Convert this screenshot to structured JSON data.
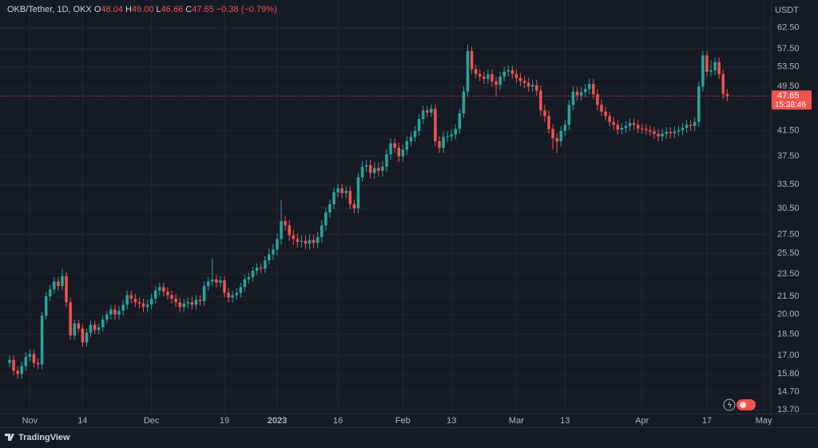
{
  "chart_data": {
    "type": "candlestick",
    "header": {
      "symbol": "OKB/Tether, 1D, OKX",
      "fields": [
        [
          "O",
          "48.04"
        ],
        [
          "H",
          "49.00"
        ],
        [
          "L",
          "46.66"
        ],
        [
          "C",
          "47.65"
        ]
      ],
      "change": "−0.38 (−0.79%)"
    },
    "unit": "USDT",
    "brand": "TradingView",
    "log": true,
    "grid": true,
    "up_color": "#26a69a",
    "down_color": "#ef5350",
    "last_price": 47.65,
    "countdown": "15:38:46",
    "ylim": [
      13.4,
      69.8
    ],
    "yticks": [
      {
        "value": 62.5,
        "label": "62.50"
      },
      {
        "value": 57.5,
        "label": "57.50"
      },
      {
        "value": 53.5,
        "label": "53.50"
      },
      {
        "value": 49.5,
        "label": "49.50"
      },
      {
        "value": 41.5,
        "label": "41.50"
      },
      {
        "value": 37.5,
        "label": "37.50"
      },
      {
        "value": 33.5,
        "label": "33.50"
      },
      {
        "value": 30.5,
        "label": "30.50"
      },
      {
        "value": 27.5,
        "label": "27.50"
      },
      {
        "value": 25.5,
        "label": "25.50"
      },
      {
        "value": 23.5,
        "label": "23.50"
      },
      {
        "value": 21.5,
        "label": "21.50"
      },
      {
        "value": 20,
        "label": "20.00"
      },
      {
        "value": 18.5,
        "label": "18.50"
      },
      {
        "value": 17,
        "label": "17.00"
      },
      {
        "value": 15.8,
        "label": "15.80"
      },
      {
        "value": 14.7,
        "label": "14.70"
      },
      {
        "value": 13.7,
        "label": "13.70"
      }
    ],
    "categories": [
      null,
      null,
      null,
      null,
      null,
      "Nov",
      null,
      null,
      null,
      null,
      null,
      null,
      null,
      null,
      null,
      null,
      null,
      null,
      "14",
      null,
      null,
      null,
      null,
      null,
      null,
      null,
      null,
      null,
      null,
      null,
      null,
      null,
      null,
      null,
      null,
      "Dec",
      null,
      null,
      null,
      null,
      null,
      null,
      null,
      null,
      null,
      null,
      null,
      null,
      null,
      null,
      null,
      null,
      null,
      "19",
      null,
      null,
      null,
      null,
      null,
      null,
      null,
      null,
      null,
      null,
      null,
      null,
      "2023",
      null,
      null,
      null,
      null,
      null,
      null,
      null,
      null,
      null,
      null,
      null,
      null,
      null,
      null,
      "16",
      null,
      null,
      null,
      null,
      null,
      null,
      null,
      null,
      null,
      null,
      null,
      null,
      null,
      null,
      null,
      "Feb",
      null,
      null,
      null,
      null,
      null,
      null,
      null,
      null,
      null,
      null,
      null,
      "13",
      null,
      null,
      null,
      null,
      null,
      null,
      null,
      null,
      null,
      null,
      null,
      null,
      null,
      null,
      null,
      "Mar",
      null,
      null,
      null,
      null,
      null,
      null,
      null,
      null,
      null,
      null,
      null,
      "13",
      null,
      null,
      null,
      null,
      null,
      null,
      null,
      null,
      null,
      null,
      null,
      null,
      null,
      null,
      null,
      null,
      null,
      null,
      "Apr",
      null,
      null,
      null,
      null,
      null,
      null,
      null,
      null,
      null,
      null,
      null,
      null,
      null,
      null,
      null,
      "17",
      null,
      null,
      null,
      null,
      null,
      null,
      null,
      null,
      null,
      null,
      null,
      null,
      null,
      "May"
    ],
    "open": [
      16.5,
      16.7,
      16.0,
      15.8,
      16.3,
      16.9,
      17.1,
      16.5,
      16.4,
      19.9,
      21.5,
      22.1,
      22.8,
      22.4,
      23.3,
      21.0,
      18.4,
      19.3,
      18.9,
      17.9,
      18.6,
      19.2,
      18.8,
      19.0,
      19.6,
      20.0,
      20.4,
      20.0,
      20.3,
      20.8,
      21.6,
      21.3,
      21.0,
      20.9,
      20.6,
      20.8,
      21.3,
      22.0,
      22.3,
      21.9,
      21.6,
      21.3,
      21.0,
      20.6,
      20.9,
      21.0,
      20.8,
      21.2,
      21.1,
      22.4,
      22.8,
      23.0,
      22.7,
      22.9,
      21.8,
      21.4,
      21.6,
      21.8,
      22.3,
      23.0,
      23.2,
      23.8,
      24.1,
      24.0,
      24.8,
      25.4,
      25.9,
      27.0,
      29.0,
      28.5,
      27.4,
      27.0,
      26.7,
      26.8,
      26.5,
      26.9,
      26.6,
      27.2,
      28.5,
      30.0,
      31.0,
      32.5,
      33.0,
      32.4,
      32.7,
      31.0,
      30.5,
      34.5,
      36.0,
      36.2,
      35.1,
      35.8,
      35.4,
      36.0,
      37.8,
      39.5,
      38.8,
      37.5,
      38.5,
      39.8,
      40.5,
      41.5,
      43.5,
      45.0,
      44.6,
      45.3,
      39.8,
      38.8,
      40.5,
      40.6,
      40.9,
      41.8,
      44.5,
      48.5,
      57.0,
      53.0,
      52.0,
      51.5,
      51.0,
      52.0,
      50.5,
      49.8,
      51.5,
      52.5,
      52.8,
      52.0,
      51.2,
      50.6,
      50.2,
      49.5,
      49.8,
      48.7,
      45.0,
      44.0,
      41.8,
      40.3,
      39.8,
      41.5,
      42.5,
      46.0,
      48.5,
      47.8,
      48.4,
      49.0,
      50.0,
      48.0,
      46.0,
      44.8,
      44.0,
      43.0,
      42.5,
      41.7,
      42.0,
      42.3,
      42.8,
      42.5,
      41.9,
      41.8,
      41.6,
      41.4,
      41.0,
      40.6,
      41.0,
      41.3,
      41.1,
      41.4,
      41.6,
      42.0,
      42.5,
      42.3,
      43.0,
      49.5,
      56.0,
      52.5,
      52.8,
      54.5,
      52.0,
      48.04,
      null,
      null,
      null,
      null,
      null,
      null,
      null,
      null,
      null
    ],
    "high": [
      17.0,
      17.0,
      16.3,
      16.6,
      17.2,
      17.4,
      17.4,
      16.8,
      20.2,
      21.9,
      22.5,
      23.2,
      23.2,
      24.0,
      23.7,
      21.4,
      19.6,
      19.6,
      19.2,
      18.9,
      19.5,
      19.5,
      19.3,
      19.9,
      20.3,
      20.8,
      20.8,
      20.7,
      21.2,
      22.0,
      22.0,
      21.7,
      21.4,
      21.3,
      21.2,
      21.7,
      22.4,
      22.7,
      22.7,
      22.3,
      22.0,
      21.7,
      21.4,
      21.3,
      21.4,
      21.4,
      21.6,
      21.6,
      22.8,
      23.2,
      25.0,
      23.4,
      23.3,
      23.3,
      22.2,
      22.0,
      22.2,
      22.7,
      23.4,
      23.6,
      24.2,
      24.5,
      24.5,
      25.2,
      26.0,
      26.5,
      27.6,
      31.5,
      29.6,
      29.1,
      28.0,
      27.6,
      27.4,
      27.4,
      27.5,
      27.5,
      27.8,
      29.1,
      30.6,
      31.6,
      33.1,
      33.6,
      33.6,
      33.3,
      33.3,
      31.6,
      35.1,
      36.8,
      37.0,
      37.0,
      36.6,
      36.6,
      36.8,
      38.6,
      40.3,
      40.3,
      39.6,
      39.3,
      40.6,
      41.3,
      42.3,
      44.3,
      45.8,
      45.8,
      46.1,
      46.1,
      40.6,
      41.3,
      41.4,
      41.7,
      42.6,
      45.3,
      49.5,
      58.5,
      58.0,
      54.0,
      53.0,
      52.5,
      53.0,
      53.0,
      51.5,
      52.5,
      53.5,
      53.8,
      53.8,
      53.0,
      52.2,
      51.6,
      51.2,
      50.8,
      50.8,
      49.7,
      46.0,
      45.0,
      42.6,
      41.1,
      42.3,
      43.3,
      47.0,
      49.5,
      49.5,
      49.4,
      50.0,
      51.0,
      51.0,
      49.0,
      47.0,
      45.6,
      44.8,
      43.8,
      43.3,
      42.8,
      43.1,
      43.6,
      43.6,
      43.3,
      42.7,
      42.6,
      42.4,
      42.2,
      41.8,
      41.8,
      42.1,
      42.1,
      42.2,
      42.4,
      42.8,
      43.3,
      43.3,
      43.8,
      50.5,
      57.0,
      57.0,
      55.0,
      55.5,
      55.5,
      53.0,
      49.0,
      null,
      null,
      null,
      null,
      null,
      null,
      null,
      null,
      null
    ],
    "low": [
      16.2,
      15.7,
      15.5,
      15.5,
      16.0,
      16.6,
      16.2,
      16.1,
      16.1,
      19.6,
      21.1,
      21.7,
      22.0,
      22.0,
      20.6,
      18.1,
      18.1,
      18.6,
      17.6,
      17.6,
      18.3,
      18.5,
      18.5,
      18.7,
      19.3,
      19.6,
      19.6,
      19.6,
      19.9,
      20.4,
      20.9,
      20.6,
      20.5,
      20.2,
      20.2,
      20.4,
      20.9,
      21.6,
      21.5,
      21.2,
      20.9,
      20.6,
      20.2,
      20.2,
      20.5,
      20.4,
      20.4,
      20.7,
      20.7,
      22.0,
      22.4,
      22.3,
      22.3,
      21.4,
      21.0,
      21.0,
      21.2,
      21.4,
      21.9,
      22.6,
      22.8,
      23.4,
      23.6,
      23.6,
      24.4,
      24.8,
      25.3,
      26.4,
      27.9,
      26.8,
      26.4,
      26.1,
      26.1,
      25.9,
      25.9,
      26.0,
      26.0,
      26.6,
      27.9,
      29.4,
      30.4,
      31.9,
      31.8,
      31.8,
      30.4,
      29.9,
      29.9,
      33.9,
      35.2,
      34.3,
      34.3,
      34.6,
      34.6,
      35.2,
      37.0,
      38.0,
      36.7,
      36.7,
      37.7,
      39.0,
      39.7,
      40.7,
      42.7,
      43.8,
      43.8,
      39.0,
      38.0,
      38.0,
      39.7,
      39.8,
      40.1,
      41.0,
      43.7,
      47.5,
      52.0,
      51.0,
      50.5,
      50.0,
      50.0,
      49.5,
      47.5,
      48.8,
      50.5,
      51.5,
      51.0,
      50.2,
      49.6,
      49.2,
      48.5,
      48.5,
      47.7,
      44.0,
      43.0,
      41.0,
      38.5,
      38.0,
      39.0,
      40.7,
      41.7,
      45.0,
      46.8,
      46.8,
      47.4,
      48.0,
      47.0,
      45.0,
      44.0,
      43.2,
      42.2,
      41.7,
      40.9,
      40.9,
      41.2,
      41.5,
      41.7,
      41.1,
      41.0,
      40.8,
      40.6,
      40.2,
      39.8,
      39.8,
      40.2,
      40.3,
      40.3,
      40.6,
      40.8,
      41.2,
      41.5,
      41.5,
      42.2,
      48.5,
      51.5,
      51.5,
      51.8,
      51.0,
      47.0,
      46.66,
      null,
      null,
      null,
      null,
      null,
      null,
      null,
      null,
      null
    ],
    "close": [
      16.7,
      16.0,
      15.8,
      16.3,
      16.9,
      17.1,
      16.5,
      16.4,
      19.9,
      21.5,
      22.1,
      22.8,
      22.4,
      23.3,
      21.0,
      18.4,
      19.3,
      18.9,
      17.9,
      18.6,
      19.2,
      18.8,
      19.0,
      19.6,
      20.0,
      20.4,
      20.0,
      20.3,
      20.8,
      21.6,
      21.3,
      21.0,
      20.9,
      20.6,
      20.8,
      21.3,
      22.0,
      22.3,
      21.9,
      21.6,
      21.3,
      21.0,
      20.6,
      20.9,
      21.0,
      20.8,
      21.2,
      21.1,
      22.4,
      22.8,
      23.0,
      22.7,
      22.9,
      21.8,
      21.4,
      21.6,
      21.8,
      22.3,
      23.0,
      23.2,
      23.8,
      24.1,
      24.0,
      24.8,
      25.4,
      25.9,
      27.0,
      29.0,
      28.5,
      27.4,
      27.0,
      26.7,
      26.8,
      26.5,
      26.9,
      26.6,
      27.2,
      28.5,
      30.0,
      31.0,
      32.5,
      33.0,
      32.4,
      32.7,
      31.0,
      30.5,
      34.5,
      36.0,
      36.2,
      35.1,
      35.8,
      35.4,
      36.0,
      37.8,
      39.5,
      38.8,
      37.5,
      38.5,
      39.8,
      40.5,
      41.5,
      43.5,
      45.0,
      44.6,
      45.3,
      39.8,
      38.8,
      40.5,
      40.6,
      40.9,
      41.8,
      44.5,
      48.5,
      57.0,
      53.0,
      52.0,
      51.5,
      51.0,
      52.0,
      50.5,
      49.8,
      51.5,
      52.5,
      52.8,
      52.0,
      51.2,
      50.6,
      50.2,
      49.5,
      49.8,
      48.7,
      45.0,
      44.0,
      41.8,
      40.3,
      39.8,
      41.5,
      42.5,
      46.0,
      48.5,
      47.8,
      48.4,
      49.0,
      50.0,
      48.0,
      46.0,
      44.8,
      44.0,
      43.0,
      42.5,
      41.7,
      42.0,
      42.3,
      42.8,
      42.5,
      41.9,
      41.8,
      41.6,
      41.4,
      41.0,
      40.6,
      41.0,
      41.3,
      41.1,
      41.4,
      41.6,
      42.0,
      42.5,
      42.3,
      43.0,
      49.5,
      56.0,
      52.5,
      52.8,
      54.5,
      52.0,
      48.04,
      47.65,
      null,
      null,
      null,
      null,
      null,
      null,
      null,
      null,
      null
    ]
  }
}
